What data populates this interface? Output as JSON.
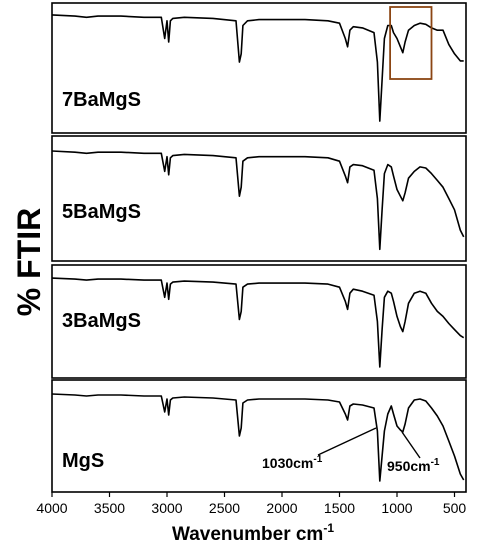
{
  "chart_data": {
    "type": "line",
    "ylabel": "% FTIR",
    "xlabel": {
      "text": "Wavenumber cm",
      "sup": "-1"
    },
    "xlim": [
      4000,
      400
    ],
    "x_reversed": true,
    "xticks": [
      4000,
      3500,
      3000,
      2500,
      2000,
      1500,
      1000,
      500
    ],
    "xtick_labels": [
      "4000",
      "3500",
      "3000",
      "2500",
      "2000",
      "1500",
      "1000",
      "500"
    ],
    "ylim": [
      0,
      1
    ],
    "series": [
      {
        "name": "7BaMgS",
        "x": [
          4000,
          3800,
          3700,
          3600,
          3400,
          3200,
          3050,
          3020,
          3000,
          2985,
          2970,
          2950,
          2850,
          2600,
          2400,
          2370,
          2355,
          2340,
          2300,
          2200,
          2000,
          1800,
          1600,
          1500,
          1450,
          1430,
          1410,
          1380,
          1300,
          1200,
          1170,
          1150,
          1130,
          1110,
          1080,
          1050,
          1030,
          1000,
          970,
          950,
          930,
          900,
          850,
          800,
          750,
          700,
          650,
          600,
          550,
          500,
          450,
          420
        ],
        "y": [
          0.95,
          0.94,
          0.93,
          0.94,
          0.94,
          0.93,
          0.93,
          0.75,
          0.9,
          0.72,
          0.9,
          0.92,
          0.93,
          0.92,
          0.9,
          0.55,
          0.62,
          0.86,
          0.9,
          0.91,
          0.91,
          0.91,
          0.9,
          0.88,
          0.75,
          0.68,
          0.82,
          0.85,
          0.84,
          0.8,
          0.55,
          0.05,
          0.4,
          0.75,
          0.86,
          0.86,
          0.8,
          0.75,
          0.68,
          0.63,
          0.72,
          0.82,
          0.86,
          0.88,
          0.87,
          0.84,
          0.82,
          0.82,
          0.7,
          0.62,
          0.56,
          0.56
        ]
      },
      {
        "name": "5BaMgS",
        "x": [
          4000,
          3800,
          3700,
          3600,
          3400,
          3200,
          3050,
          3020,
          3000,
          2985,
          2970,
          2950,
          2850,
          2600,
          2400,
          2370,
          2355,
          2340,
          2300,
          2200,
          2000,
          1800,
          1600,
          1500,
          1450,
          1430,
          1410,
          1380,
          1300,
          1200,
          1170,
          1150,
          1130,
          1110,
          1080,
          1050,
          1030,
          1000,
          970,
          950,
          930,
          900,
          850,
          800,
          750,
          700,
          650,
          600,
          550,
          500,
          450,
          420
        ],
        "y": [
          0.92,
          0.91,
          0.9,
          0.91,
          0.91,
          0.9,
          0.9,
          0.74,
          0.87,
          0.71,
          0.86,
          0.88,
          0.89,
          0.88,
          0.86,
          0.52,
          0.6,
          0.83,
          0.86,
          0.87,
          0.87,
          0.87,
          0.86,
          0.83,
          0.7,
          0.64,
          0.78,
          0.8,
          0.79,
          0.75,
          0.5,
          0.05,
          0.4,
          0.72,
          0.8,
          0.78,
          0.7,
          0.58,
          0.52,
          0.48,
          0.55,
          0.68,
          0.74,
          0.78,
          0.77,
          0.72,
          0.66,
          0.6,
          0.5,
          0.4,
          0.22,
          0.16
        ]
      },
      {
        "name": "3BaMgS",
        "x": [
          4000,
          3800,
          3700,
          3600,
          3400,
          3200,
          3050,
          3020,
          3000,
          2985,
          2970,
          2950,
          2850,
          2600,
          2400,
          2370,
          2355,
          2340,
          2300,
          2200,
          2000,
          1800,
          1600,
          1500,
          1450,
          1430,
          1410,
          1380,
          1300,
          1200,
          1170,
          1150,
          1130,
          1110,
          1080,
          1050,
          1030,
          1000,
          970,
          950,
          930,
          900,
          850,
          800,
          750,
          700,
          650,
          600,
          550,
          500,
          450,
          420
        ],
        "y": [
          0.93,
          0.92,
          0.91,
          0.92,
          0.92,
          0.91,
          0.91,
          0.74,
          0.88,
          0.72,
          0.87,
          0.89,
          0.9,
          0.89,
          0.87,
          0.52,
          0.6,
          0.84,
          0.87,
          0.88,
          0.88,
          0.88,
          0.87,
          0.84,
          0.7,
          0.62,
          0.78,
          0.82,
          0.8,
          0.76,
          0.5,
          0.05,
          0.42,
          0.74,
          0.8,
          0.78,
          0.7,
          0.55,
          0.45,
          0.4,
          0.5,
          0.68,
          0.78,
          0.8,
          0.78,
          0.68,
          0.6,
          0.55,
          0.48,
          0.42,
          0.36,
          0.34
        ]
      },
      {
        "name": "MgS",
        "x": [
          4000,
          3800,
          3700,
          3600,
          3400,
          3200,
          3050,
          3020,
          3000,
          2985,
          2970,
          2950,
          2850,
          2600,
          2400,
          2370,
          2355,
          2340,
          2300,
          2200,
          2000,
          1800,
          1600,
          1500,
          1450,
          1430,
          1410,
          1380,
          1300,
          1200,
          1170,
          1150,
          1130,
          1110,
          1080,
          1050,
          1030,
          1000,
          970,
          950,
          930,
          900,
          850,
          800,
          750,
          700,
          650,
          600,
          550,
          500,
          450,
          420
        ],
        "y": [
          0.92,
          0.91,
          0.9,
          0.91,
          0.91,
          0.9,
          0.9,
          0.74,
          0.87,
          0.71,
          0.86,
          0.88,
          0.89,
          0.88,
          0.86,
          0.5,
          0.58,
          0.83,
          0.86,
          0.87,
          0.87,
          0.87,
          0.86,
          0.84,
          0.72,
          0.66,
          0.8,
          0.82,
          0.81,
          0.78,
          0.55,
          0.05,
          0.3,
          0.55,
          0.72,
          0.8,
          0.72,
          0.6,
          0.56,
          0.54,
          0.62,
          0.78,
          0.86,
          0.87,
          0.85,
          0.78,
          0.7,
          0.6,
          0.45,
          0.3,
          0.12,
          0.06
        ]
      }
    ],
    "annotations": [
      {
        "series": "MgS",
        "text": "1030cm",
        "sup": "-1",
        "x": 1030
      },
      {
        "series": "MgS",
        "text": "950cm",
        "sup": "-1",
        "x": 950
      }
    ],
    "highlight_box": {
      "series": "7BaMgS",
      "x_range": [
        1060,
        700
      ],
      "color": "#8B4513"
    }
  }
}
